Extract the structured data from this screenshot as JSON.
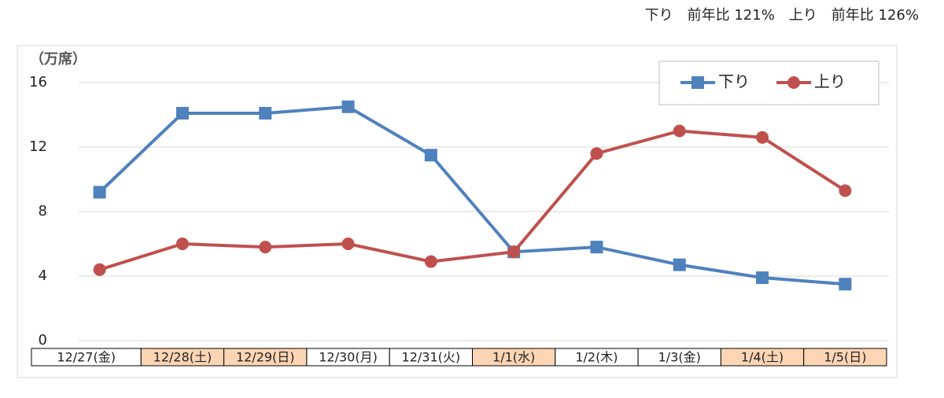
{
  "chart_data": {
    "type": "line",
    "annotation": "下り　前年比 121%　上り　前年比 126%",
    "y_label": "（万席）",
    "categories": [
      "12/27(金)",
      "12/28(土)",
      "12/29(日)",
      "12/30(月)",
      "12/31(火)",
      "1/1(水)",
      "1/2(木)",
      "1/3(金)",
      "1/4(土)",
      "1/5(日)"
    ],
    "category_fills": [
      "#ffffff",
      "#fcd5b4",
      "#fcd5b4",
      "#ffffff",
      "#ffffff",
      "#fcd5b4",
      "#ffffff",
      "#ffffff",
      "#fcd5b4",
      "#fcd5b4"
    ],
    "series": [
      {
        "name": "下り",
        "color": "#4f81bd",
        "marker": "square",
        "values": [
          9.2,
          14.1,
          14.1,
          14.5,
          11.5,
          5.5,
          5.8,
          4.7,
          3.9,
          3.5
        ]
      },
      {
        "name": "上り",
        "color": "#c0504d",
        "marker": "circle",
        "values": [
          4.4,
          6.0,
          5.8,
          6.0,
          4.9,
          5.5,
          11.6,
          13.0,
          12.6,
          9.3
        ]
      }
    ],
    "ylim": [
      0,
      16
    ],
    "yticks": [
      0,
      4,
      8,
      12,
      16
    ],
    "grid": true,
    "legend": "top-right"
  }
}
